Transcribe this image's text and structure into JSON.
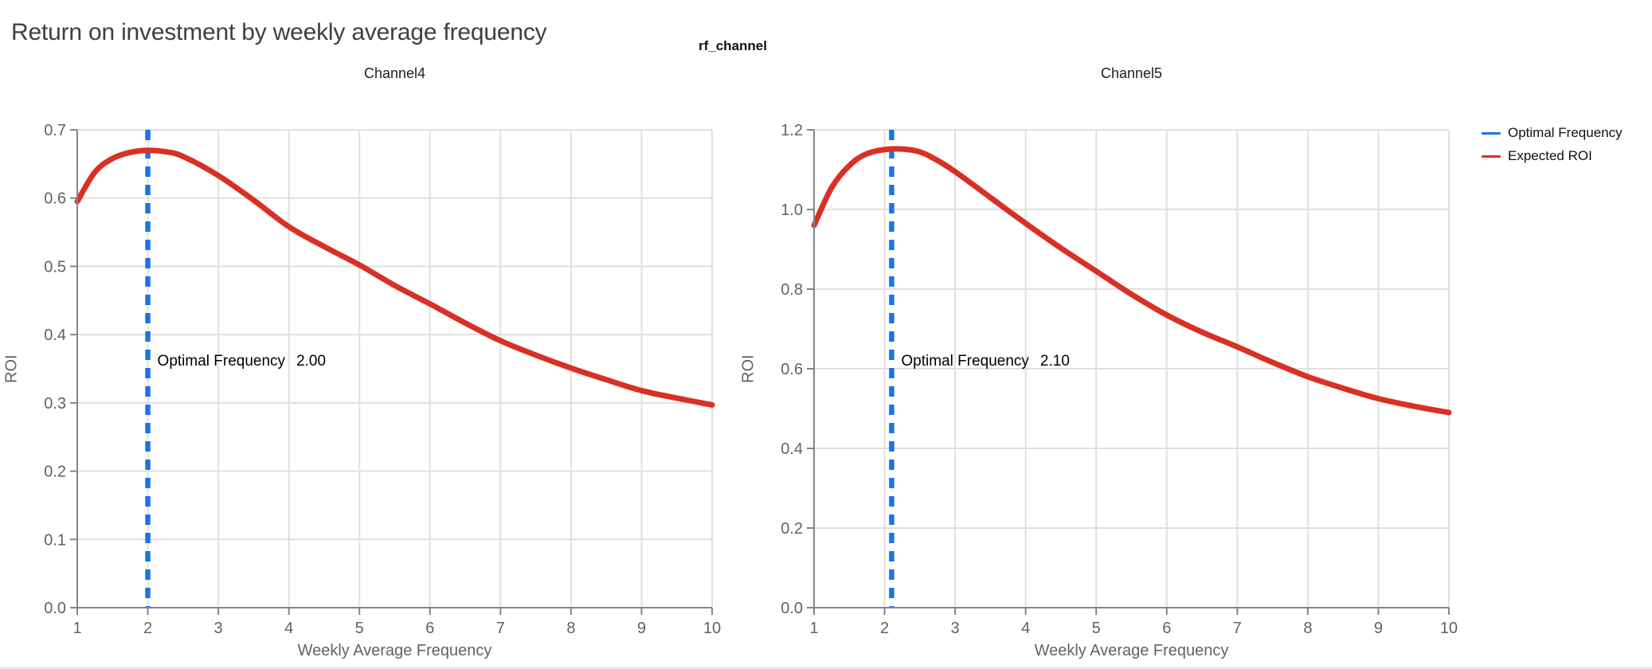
{
  "page": {
    "title": "Return on investment by weekly average frequency",
    "background": "#ffffff"
  },
  "figure": {
    "subtitle": "rf_channel"
  },
  "legend": {
    "position": "top-right",
    "items": [
      {
        "label": "Optimal Frequency",
        "color": "#1a73e8"
      },
      {
        "label": "Expected ROI",
        "color": "#d93025"
      }
    ]
  },
  "colors": {
    "curve": "#d93025",
    "vline": "#1a73e8",
    "grid": "#e0e0e0",
    "axis_domain": "#80868b",
    "tick_label": "#5f6368",
    "axis_title": "#5f6368",
    "title": "#3c4043",
    "annotation": "#000000"
  },
  "chart_data": [
    {
      "type": "line",
      "title": "Channel4",
      "xlabel": "Weekly Average Frequency",
      "ylabel": "ROI",
      "xlim": [
        1,
        10
      ],
      "ylim": [
        0.0,
        0.7
      ],
      "grid": true,
      "xtick_values": [
        1,
        2,
        3,
        4,
        5,
        6,
        7,
        8,
        9,
        10
      ],
      "xtick_labels": [
        "1",
        "2",
        "3",
        "4",
        "5",
        "6",
        "7",
        "8",
        "9",
        "10"
      ],
      "ytick_values": [
        0.0,
        0.1,
        0.2,
        0.3,
        0.4,
        0.5,
        0.6,
        0.7
      ],
      "ytick_labels": [
        "0.0",
        "0.1",
        "0.2",
        "0.3",
        "0.4",
        "0.5",
        "0.6",
        "0.7"
      ],
      "vline": {
        "name": "Optimal Frequency",
        "x": 2.0,
        "color": "#1a73e8",
        "style": "dashed"
      },
      "annotation": {
        "label": "Optimal Frequency",
        "value": "2.00",
        "y": 0.362
      },
      "series": [
        {
          "name": "Expected ROI",
          "color": "#d93025",
          "x": [
            1,
            1.25,
            1.5,
            1.75,
            2,
            2.25,
            2.5,
            3,
            3.5,
            4,
            4.5,
            5,
            5.5,
            6,
            6.5,
            7,
            7.5,
            8,
            8.5,
            9,
            9.5,
            10
          ],
          "y": [
            0.595,
            0.638,
            0.658,
            0.667,
            0.67,
            0.668,
            0.661,
            0.633,
            0.597,
            0.558,
            0.529,
            0.502,
            0.472,
            0.445,
            0.417,
            0.391,
            0.37,
            0.351,
            0.334,
            0.318,
            0.307,
            0.297
          ]
        }
      ]
    },
    {
      "type": "line",
      "title": "Channel5",
      "xlabel": "Weekly Average Frequency",
      "ylabel": "ROI",
      "xlim": [
        1,
        10
      ],
      "ylim": [
        0.0,
        1.2
      ],
      "grid": true,
      "xtick_values": [
        1,
        2,
        3,
        4,
        5,
        6,
        7,
        8,
        9,
        10
      ],
      "xtick_labels": [
        "1",
        "2",
        "3",
        "4",
        "5",
        "6",
        "7",
        "8",
        "9",
        "10"
      ],
      "ytick_values": [
        0.0,
        0.2,
        0.4,
        0.6,
        0.8,
        1.0,
        1.2
      ],
      "ytick_labels": [
        "0.0",
        "0.2",
        "0.4",
        "0.6",
        "0.8",
        "1.0",
        "1.2"
      ],
      "vline": {
        "name": "Optimal Frequency",
        "x": 2.1,
        "color": "#1a73e8",
        "style": "dashed"
      },
      "annotation": {
        "label": "Optimal Frequency",
        "value": "2.10",
        "y": 0.62
      },
      "series": [
        {
          "name": "Expected ROI",
          "color": "#d93025",
          "x": [
            1,
            1.25,
            1.5,
            1.75,
            2.1,
            2.45,
            2.7,
            3,
            3.5,
            4,
            4.5,
            5,
            5.5,
            6,
            6.5,
            7,
            7.5,
            8,
            8.5,
            9,
            9.5,
            10
          ],
          "y": [
            0.96,
            1.055,
            1.11,
            1.14,
            1.152,
            1.147,
            1.128,
            1.095,
            1.03,
            0.965,
            0.903,
            0.845,
            0.787,
            0.735,
            0.692,
            0.655,
            0.616,
            0.58,
            0.551,
            0.525,
            0.506,
            0.49
          ]
        }
      ]
    }
  ]
}
